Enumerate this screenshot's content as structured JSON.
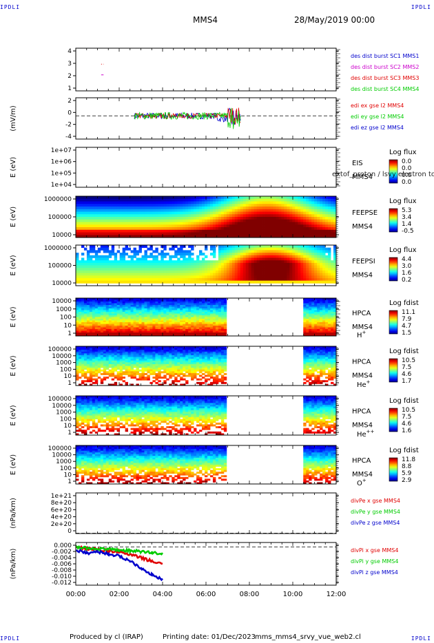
{
  "corner_label": "IPDLI",
  "header": {
    "mission": "MMS4",
    "date": "28/May/2019 00:00"
  },
  "footer": {
    "producer": "Produced by cl (IRAP)",
    "printing": "Printing date: 01/Dec/2023",
    "file": "mms_mms4_srvy_vue_web2.cl"
  },
  "time_axis": {
    "range_hours": [
      0,
      12
    ],
    "tick_labels": [
      "00:00",
      "02:00",
      "04:00",
      "06:00",
      "08:00",
      "10:00",
      "12:00"
    ]
  },
  "colors": {
    "red": "#e00000",
    "green": "#00cc00",
    "blue": "#0000cc",
    "magenta": "#cc00cc",
    "black": "#000000"
  },
  "chart_data": [
    {
      "type": "scatter",
      "id": "burst",
      "ylabel": "",
      "ylim": [
        0.5,
        4.5
      ],
      "yticks": [
        "4",
        "3",
        "2",
        "1"
      ],
      "legend": [
        "des dist burst SC1 MMS1",
        "des dist burst SC2 MMS2",
        "des dist burst SC3 MMS3",
        "des dist burst SC4 MMS4"
      ],
      "legend_colors": [
        "#0000cc",
        "#cc00cc",
        "#e00000",
        "#00cc00"
      ],
      "series": [
        {
          "name": "des dist burst SC3 MMS3",
          "y": 3,
          "x_hours": [
            1.17,
            1.28
          ]
        },
        {
          "name": "des dist burst SC2 MMS2",
          "y": 2,
          "x_hours": [
            1.17,
            1.28
          ]
        }
      ]
    },
    {
      "type": "line",
      "id": "edi",
      "ylabel": "(mV/m)",
      "ylim": [
        -4.5,
        3.5
      ],
      "yticks": [
        "2",
        "0",
        "-2",
        "-4"
      ],
      "legend": [
        "edi ex gse l2 MMS4",
        "edi ey gse l2 MMS4",
        "edi ez gse l2 MMS4"
      ],
      "legend_colors": [
        "#e00000",
        "#00cc00",
        "#0000cc"
      ],
      "data_interval_hours": [
        2.7,
        7.6
      ]
    },
    {
      "type": "heatmap",
      "id": "eis",
      "ylabel": "E (eV)",
      "log": true,
      "yticks": [
        "1e+07",
        "1e+06",
        "1e+05",
        "1e+04"
      ],
      "side_labels": [
        "EIS",
        "MMS4"
      ],
      "overlay_text": "extof_proton / lsvy electron to",
      "cbar_title": "Log flux",
      "cbar_ticks": [
        "0.0",
        "0.0",
        "0.0",
        "0.0"
      ],
      "data_intervals_hours": []
    },
    {
      "type": "heatmap",
      "id": "feepse",
      "ylabel": "E (eV)",
      "log": true,
      "yticks": [
        "1000000",
        "100000",
        "10000"
      ],
      "side_labels": [
        "FEEPSE",
        "MMS4"
      ],
      "cbar_title": "Log flux",
      "cbar_ticks": [
        "5.3",
        "3.4",
        "1.4",
        "-0.5"
      ],
      "data_intervals_hours": [
        [
          0,
          12
        ]
      ]
    },
    {
      "type": "heatmap",
      "id": "feepsi",
      "ylabel": "E (eV)",
      "log": true,
      "yticks": [
        "1000000",
        "100000",
        "10000"
      ],
      "side_labels": [
        "FEEPSI",
        "MMS4"
      ],
      "cbar_title": "Log flux",
      "cbar_ticks": [
        "4.4",
        "3.0",
        "1.6",
        "0.2"
      ],
      "data_intervals_hours": [
        [
          0,
          12
        ]
      ]
    },
    {
      "type": "heatmap",
      "id": "hpca_h",
      "ylabel": "E (eV)",
      "log": true,
      "yticks": [
        "10000",
        "1000",
        "100",
        "10",
        "1"
      ],
      "side_labels": [
        "HPCA",
        "MMS4"
      ],
      "species": "H",
      "species_sup": "+",
      "cbar_title": "Log fdist",
      "cbar_ticks": [
        "11.1",
        "7.9",
        "4.7",
        "1.5"
      ],
      "data_intervals_hours": [
        [
          0,
          7.0
        ],
        [
          10.5,
          12
        ]
      ]
    },
    {
      "type": "heatmap",
      "id": "hpca_he",
      "ylabel": "E (eV)",
      "log": true,
      "yticks": [
        "100000",
        "10000",
        "1000",
        "100",
        "10",
        "1"
      ],
      "side_labels": [
        "HPCA",
        "MMS4"
      ],
      "species": "He",
      "species_sup": "+",
      "cbar_title": "Log fdist",
      "cbar_ticks": [
        "10.5",
        "7.5",
        "4.6",
        "1.7"
      ],
      "data_intervals_hours": [
        [
          0,
          7.0
        ],
        [
          10.5,
          12
        ]
      ]
    },
    {
      "type": "heatmap",
      "id": "hpca_hepp",
      "ylabel": "E (eV)",
      "log": true,
      "yticks": [
        "100000",
        "10000",
        "1000",
        "100",
        "10",
        "1"
      ],
      "side_labels": [
        "HPCA",
        "MMS4"
      ],
      "species": "He",
      "species_sup": "++",
      "cbar_title": "Log fdist",
      "cbar_ticks": [
        "10.5",
        "7.5",
        "4.6",
        "1.6"
      ],
      "data_intervals_hours": [
        [
          0,
          7.0
        ],
        [
          10.5,
          12
        ]
      ]
    },
    {
      "type": "heatmap",
      "id": "hpca_o",
      "ylabel": "E (eV)",
      "log": true,
      "yticks": [
        "100000",
        "10000",
        "1000",
        "100",
        "10",
        "1"
      ],
      "side_labels": [
        "HPCA",
        "MMS4"
      ],
      "species": "O",
      "species_sup": "+",
      "cbar_title": "Log fdist",
      "cbar_ticks": [
        "11.8",
        "8.8",
        "5.9",
        "2.9"
      ],
      "data_intervals_hours": [
        [
          0,
          7.0
        ],
        [
          10.5,
          12
        ]
      ]
    },
    {
      "type": "line",
      "id": "divpe",
      "ylabel": "(nPa/km)",
      "ylim": [
        -1e+19,
        1.1e+21
      ],
      "yticks": [
        "1e+21",
        "8e+20",
        "6e+20",
        "4e+20",
        "2e+20",
        "0"
      ],
      "legend": [
        "divPe x gse MMS4",
        "divPe y gse MMS4",
        "divPe z gse MMS4"
      ],
      "legend_colors": [
        "#e00000",
        "#00cc00",
        "#0000cc"
      ],
      "series": []
    },
    {
      "type": "line",
      "id": "divpi",
      "ylabel": "(nPa/km)",
      "ylim": [
        -0.0125,
        0.0015
      ],
      "yticks": [
        "0.000",
        "-0.002",
        "-0.004",
        "-0.006",
        "-0.008",
        "-0.010",
        "-0.012"
      ],
      "legend": [
        "divPi x gse MMS4",
        "divPi y gse MMS4",
        "divPi z gse MMS4"
      ],
      "legend_colors": [
        "#e00000",
        "#00cc00",
        "#0000cc"
      ],
      "series": [
        {
          "name": "divPi x gse MMS4",
          "x_hours": [
            0.0,
            0.5,
            1.0,
            1.5,
            2.0,
            2.5,
            3.0,
            3.5,
            4.0
          ],
          "y": [
            0.0,
            -0.0006,
            -0.0008,
            -0.0012,
            -0.0016,
            -0.0025,
            -0.0035,
            -0.0046,
            -0.0056
          ]
        },
        {
          "name": "divPi y gse MMS4",
          "x_hours": [
            0.0,
            0.5,
            1.0,
            1.5,
            2.0,
            2.5,
            3.0,
            3.5,
            4.0
          ],
          "y": [
            0.0,
            -0.0004,
            -0.0006,
            -0.0008,
            -0.001,
            -0.0012,
            -0.0015,
            -0.0018,
            -0.0022
          ]
        },
        {
          "name": "divPi z gse MMS4",
          "x_hours": [
            0.0,
            0.5,
            1.0,
            1.5,
            2.0,
            2.5,
            3.0,
            3.5,
            4.0
          ],
          "y": [
            -0.001,
            -0.002,
            -0.0015,
            -0.0022,
            -0.003,
            -0.0045,
            -0.0068,
            -0.009,
            -0.0108
          ]
        }
      ]
    }
  ]
}
